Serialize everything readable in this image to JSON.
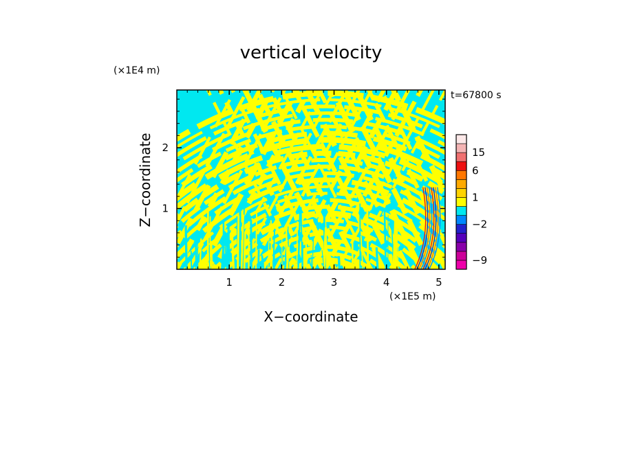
{
  "chart_data": {
    "type": "heatmap",
    "title": "vertical velocity",
    "xlabel": "X−coordinate",
    "ylabel": "Z−coordinate",
    "x_unit": "(×1E5 m)",
    "y_unit": "(×1E4 m)",
    "time_label": "t=67800 s",
    "xlim": [
      0,
      5.12
    ],
    "ylim": [
      0,
      2.95
    ],
    "x_ticks": [
      {
        "value": 1,
        "label": "1"
      },
      {
        "value": 2,
        "label": "2"
      },
      {
        "value": 3,
        "label": "3"
      },
      {
        "value": 4,
        "label": "4"
      },
      {
        "value": 5,
        "label": "5"
      }
    ],
    "y_ticks": [
      {
        "value": 1,
        "label": "1"
      },
      {
        "value": 2,
        "label": "2"
      }
    ],
    "colorbar": {
      "levels": [
        {
          "lo": -12,
          "hi": -9,
          "color": "#ee00aa"
        },
        {
          "lo": -9,
          "hi": -6,
          "color": "#cc0099"
        },
        {
          "lo": -6,
          "hi": -4,
          "color": "#8800aa"
        },
        {
          "lo": -4,
          "hi": -3,
          "color": "#5500bb"
        },
        {
          "lo": -3,
          "hi": -2,
          "color": "#2222cc"
        },
        {
          "lo": -2,
          "hi": -1,
          "color": "#0088ff"
        },
        {
          "lo": -1,
          "hi": 0,
          "color": "#00e8f0"
        },
        {
          "lo": 0,
          "hi": 1,
          "color": "#ffff00"
        },
        {
          "lo": 1,
          "hi": 2,
          "color": "#ffd400"
        },
        {
          "lo": 2,
          "hi": 3,
          "color": "#ffaa00"
        },
        {
          "lo": 3,
          "hi": 6,
          "color": "#ff7700"
        },
        {
          "lo": 6,
          "hi": 10,
          "color": "#ee1111"
        },
        {
          "lo": 10,
          "hi": 15,
          "color": "#f07070"
        },
        {
          "lo": 15,
          "hi": 19,
          "color": "#f4b4b4"
        },
        {
          "lo": 19,
          "hi": 25,
          "color": "#fce8e8"
        }
      ],
      "labels": [
        {
          "value": 15,
          "label": "15"
        },
        {
          "value": 6,
          "label": "6"
        },
        {
          "value": 1,
          "label": "1"
        },
        {
          "value": -2,
          "label": "−2"
        },
        {
          "value": -9,
          "label": "−9"
        }
      ]
    }
  }
}
